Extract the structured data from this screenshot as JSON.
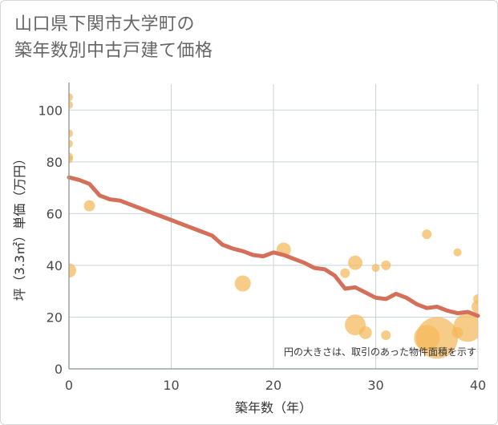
{
  "title_line1": "山口県下関市大学町の",
  "title_line2": "築年数別中古戸建て価格",
  "chart_data": {
    "type": "scatter+line",
    "xlabel": "築年数（年）",
    "ylabel": "坪（3.3㎡）単価（万円）",
    "xlim": [
      0,
      40
    ],
    "ylim": [
      0,
      110
    ],
    "xticks": [
      0,
      10,
      20,
      30,
      40
    ],
    "yticks": [
      0,
      20,
      40,
      60,
      80,
      100
    ],
    "grid": true,
    "note": "円の大きさは、取引のあった物件面積を示す",
    "colors": {
      "line": "#d4705a",
      "bubble": "#f4b95a",
      "grid": "#c8d3de",
      "axis": "#9aa0a6"
    },
    "trend_line": {
      "x": [
        0,
        1,
        2,
        3,
        4,
        5,
        6,
        7,
        8,
        9,
        10,
        11,
        12,
        13,
        14,
        15,
        16,
        17,
        18,
        19,
        20,
        21,
        22,
        23,
        24,
        25,
        26,
        27,
        28,
        29,
        30,
        31,
        32,
        33,
        34,
        35,
        36,
        37,
        38,
        39,
        40
      ],
      "y": [
        74,
        73,
        71.5,
        67,
        65.5,
        65,
        63.5,
        62,
        60.5,
        59,
        57.5,
        56,
        54.5,
        53,
        51.5,
        48,
        46.5,
        45.5,
        44,
        43.5,
        45,
        44,
        42.5,
        41,
        39,
        38.5,
        36,
        31,
        31.5,
        29.5,
        27.5,
        27,
        29,
        27.5,
        25,
        23.5,
        24,
        22.5,
        21.5,
        22,
        20.5
      ]
    },
    "bubbles": [
      {
        "x": 0,
        "y": 105,
        "size": 5
      },
      {
        "x": 0,
        "y": 102,
        "size": 5
      },
      {
        "x": 0,
        "y": 91,
        "size": 5
      },
      {
        "x": 0,
        "y": 87,
        "size": 5
      },
      {
        "x": 0,
        "y": 82,
        "size": 5
      },
      {
        "x": 0,
        "y": 81,
        "size": 5
      },
      {
        "x": 0,
        "y": 38,
        "size": 9
      },
      {
        "x": 2,
        "y": 63,
        "size": 7
      },
      {
        "x": 17,
        "y": 33,
        "size": 10
      },
      {
        "x": 21,
        "y": 46,
        "size": 9
      },
      {
        "x": 27,
        "y": 37,
        "size": 6
      },
      {
        "x": 28,
        "y": 41,
        "size": 9
      },
      {
        "x": 28,
        "y": 17,
        "size": 13
      },
      {
        "x": 29,
        "y": 14,
        "size": 8
      },
      {
        "x": 30,
        "y": 39,
        "size": 5
      },
      {
        "x": 31,
        "y": 40,
        "size": 6
      },
      {
        "x": 31,
        "y": 13,
        "size": 6
      },
      {
        "x": 35,
        "y": 52,
        "size": 6
      },
      {
        "x": 35,
        "y": 12,
        "size": 16
      },
      {
        "x": 36,
        "y": 12,
        "size": 26
      },
      {
        "x": 38,
        "y": 45,
        "size": 5
      },
      {
        "x": 38,
        "y": 14,
        "size": 7
      },
      {
        "x": 39,
        "y": 16,
        "size": 18
      },
      {
        "x": 40,
        "y": 27,
        "size": 6
      },
      {
        "x": 40,
        "y": 24,
        "size": 8
      }
    ]
  }
}
